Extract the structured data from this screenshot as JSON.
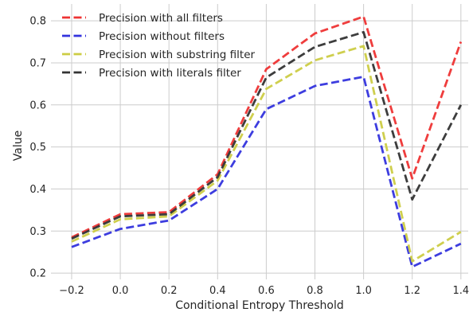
{
  "chart_data": {
    "type": "line",
    "xlabel": "Conditional Entropy Threshold",
    "ylabel": "Value",
    "x": [
      -0.2,
      0.0,
      0.2,
      0.4,
      0.6,
      0.8,
      1.0,
      1.2,
      1.4
    ],
    "xticks": [
      -0.2,
      0.0,
      0.2,
      0.4,
      0.6,
      0.8,
      1.0,
      1.2,
      1.4
    ],
    "xtick_labels": [
      "−0.2",
      "0.0",
      "0.2",
      "0.4",
      "0.6",
      "0.8",
      "1.0",
      "1.2",
      "1.4"
    ],
    "yticks": [
      0.2,
      0.3,
      0.4,
      0.5,
      0.6,
      0.7,
      0.8
    ],
    "ytick_labels": [
      "0.2",
      "0.3",
      "0.4",
      "0.5",
      "0.6",
      "0.7",
      "0.8"
    ],
    "xlim": [
      -0.285,
      1.43
    ],
    "ylim": [
      0.185,
      0.84
    ],
    "grid": true,
    "legend_position": "top-left",
    "series": [
      {
        "name": "Precision with all filters",
        "color": "#ee3333",
        "values": [
          0.285,
          0.34,
          0.345,
          0.435,
          0.685,
          0.77,
          0.81,
          0.425,
          0.75
        ]
      },
      {
        "name": "Precision without filters",
        "color": "#3333dd",
        "values": [
          0.262,
          0.305,
          0.325,
          0.4,
          0.59,
          0.645,
          0.667,
          0.215,
          0.27
        ]
      },
      {
        "name": "Precision with substring filter",
        "color": "#cccc44",
        "values": [
          0.275,
          0.328,
          0.335,
          0.42,
          0.638,
          0.706,
          0.74,
          0.228,
          0.298
        ]
      },
      {
        "name": "Precision with literals filter",
        "color": "#333333",
        "values": [
          0.282,
          0.335,
          0.34,
          0.428,
          0.665,
          0.738,
          0.773,
          0.375,
          0.6
        ]
      }
    ]
  }
}
